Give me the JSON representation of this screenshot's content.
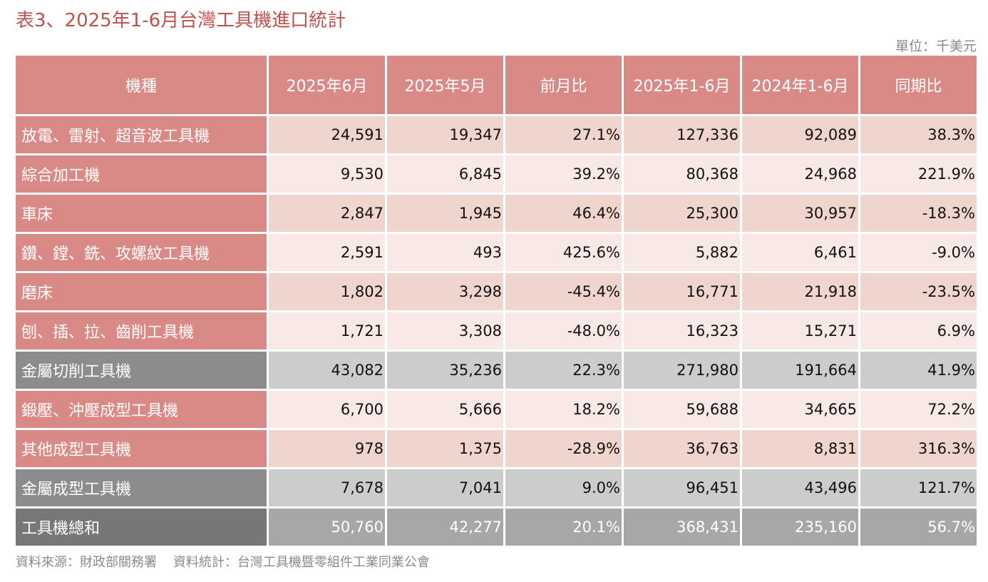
{
  "title": "表3、2025年1-6月台灣工具機進口統計",
  "unit": "單位：千美元",
  "table": {
    "headers": [
      "機種",
      "2025年6月",
      "2025年5月",
      "前月比",
      "2025年1-6月",
      "2024年1-6月",
      "同期比"
    ],
    "rows": [
      {
        "type": "t-dark",
        "cells": [
          "放電、雷射、超音波工具機",
          "24,591",
          "19,347",
          "27.1%",
          "127,336",
          "92,089",
          "38.3%"
        ]
      },
      {
        "type": "t-light",
        "cells": [
          "綜合加工機",
          "9,530",
          "6,845",
          "39.2%",
          "80,368",
          "24,968",
          "221.9%"
        ]
      },
      {
        "type": "t-dark",
        "cells": [
          "車床",
          "2,847",
          "1,945",
          "46.4%",
          "25,300",
          "30,957",
          "-18.3%"
        ]
      },
      {
        "type": "t-light",
        "cells": [
          "鑽、鏜、銑、攻螺紋工具機",
          "2,591",
          "493",
          "425.6%",
          "5,882",
          "6,461",
          "-9.0%"
        ]
      },
      {
        "type": "t-dark",
        "cells": [
          "磨床",
          "1,802",
          "3,298",
          "-45.4%",
          "16,771",
          "21,918",
          "-23.5%"
        ]
      },
      {
        "type": "t-light",
        "cells": [
          "刨、插、拉、齒削工具機",
          "1,721",
          "3,308",
          "-48.0%",
          "16,323",
          "15,271",
          "6.9%"
        ]
      },
      {
        "type": "t-sub",
        "cells": [
          "金屬切削工具機",
          "43,082",
          "35,236",
          "22.3%",
          "271,980",
          "191,664",
          "41.9%"
        ]
      },
      {
        "type": "t-light",
        "cells": [
          "鍛壓、沖壓成型工具機",
          "6,700",
          "5,666",
          "18.2%",
          "59,688",
          "34,665",
          "72.2%"
        ]
      },
      {
        "type": "t-dark",
        "cells": [
          "其他成型工具機",
          "978",
          "1,375",
          "-28.9%",
          "36,763",
          "8,831",
          "316.3%"
        ]
      },
      {
        "type": "t-sub",
        "cells": [
          "金屬成型工具機",
          "7,678",
          "7,041",
          "9.0%",
          "96,451",
          "43,496",
          "121.7%"
        ]
      },
      {
        "type": "t-total",
        "cells": [
          "工具機總和",
          "50,760",
          "42,277",
          "20.1%",
          "368,431",
          "235,160",
          "56.7%"
        ]
      }
    ]
  },
  "footer": {
    "source": "資料來源：財政部關務署",
    "stats": "資料統計：台灣工具機暨零組件工業同業公會"
  },
  "colors": {
    "title": "#c0504d",
    "header_bg": "#d98a86",
    "row_dark": "#f0d5cf",
    "row_light": "#f8e9e6",
    "subtotal_label": "#8c8c8c",
    "subtotal_row": "#cccccc",
    "total_label": "#777777",
    "total_row": "#a7a7a7"
  }
}
